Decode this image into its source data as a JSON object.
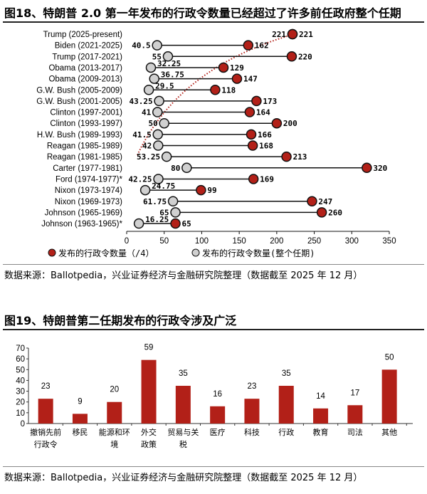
{
  "chart_data": [
    {
      "type": "dumbbell",
      "title": "图18、特朗普 2.0 第一年发布的行政令数量已经超过了许多前任政府整个任期",
      "categories": [
        "Trump (2025-present)",
        "Biden (2021-2025)",
        "Trump (2017-2021)",
        "Obama (2013-2017)",
        "Obama (2009-2013)",
        "G.W. Bush (2005-2009)",
        "G.W. Bush (2001-2005)",
        "Clinton (1997-2001)",
        "Clinton (1993-1997)",
        "H.W. Bush (1989-1993)",
        "Reagan (1985-1989)",
        "Reagan (1981-1985)",
        "Carter (1977-1981)",
        "Ford (1974-1977)*",
        "Nixon (1973-1974)",
        "Nixon (1969-1973)",
        "Johnson (1965-1969)",
        "Johnson (1963-1965)*"
      ],
      "series": [
        {
          "name": "发布的行政令数量（/4）",
          "color": "#b22018",
          "values": [
            221,
            40.5,
            55,
            32.25,
            36.75,
            29.5,
            43.25,
            41,
            50,
            41.5,
            42,
            53.25,
            80,
            42.25,
            24.75,
            61.75,
            65,
            16.25
          ]
        },
        {
          "name": "发布的行政令数量(整个任期)",
          "color": "#d0d0d0",
          "values": [
            221,
            162,
            220,
            129,
            147,
            118,
            173,
            164,
            200,
            166,
            168,
            213,
            320,
            169,
            99,
            247,
            260,
            65
          ]
        }
      ],
      "xlim": [
        0,
        350
      ],
      "xticks": [
        "0",
        "50",
        "100",
        "150",
        "200",
        "250",
        "300",
        "350"
      ],
      "trend_line": "dotted red",
      "legend": "bottom"
    },
    {
      "type": "bar",
      "title": "图19、特朗普第二任期发布的行政令涉及广泛",
      "categories": [
        "撤销先前行政令",
        "移民",
        "能源和环境",
        "外交政策",
        "贸易与关税",
        "医疗",
        "科技",
        "行政",
        "教育",
        "司法",
        "其他"
      ],
      "values": [
        23,
        9,
        20,
        59,
        35,
        16,
        23,
        35,
        14,
        17,
        50
      ],
      "ylim": [
        0,
        70
      ],
      "yticks": [
        "0",
        "10",
        "20",
        "30",
        "40",
        "50",
        "60",
        "70"
      ],
      "color": "#b22018"
    }
  ],
  "source1": "数据来源：Ballotpedia，兴业证券经济与金融研究院整理（数据截至 2025 年 12 月）",
  "source2": "数据来源：Ballotpedia，兴业证券经济与金融研究院整理（数据截至 2025 年 12 月）"
}
